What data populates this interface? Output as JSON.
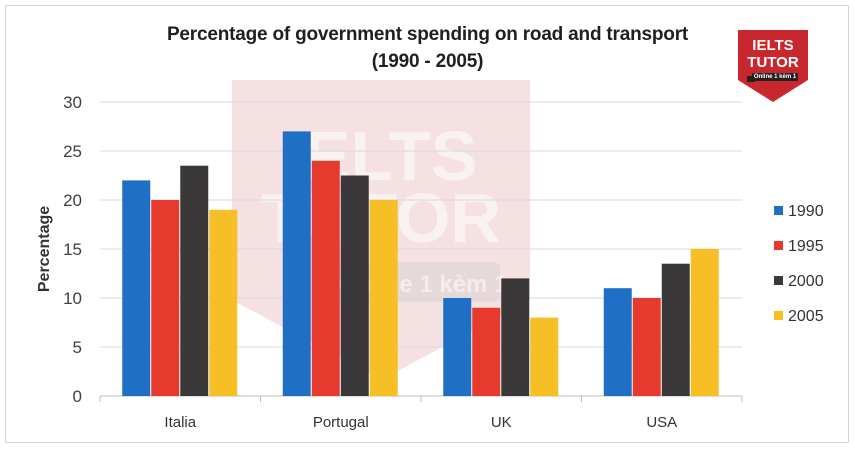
{
  "chart_data": {
    "type": "bar",
    "title": "Percentage of government spending on road and transport",
    "subtitle": "(1990 - 2005)",
    "xlabel": "",
    "ylabel": "Percentage",
    "ylim": [
      0,
      30
    ],
    "yticks": [
      0,
      5,
      10,
      15,
      20,
      25,
      30
    ],
    "grid": true,
    "legend_position": "right",
    "categories": [
      "Italia",
      "Portugal",
      "UK",
      "USA"
    ],
    "series": [
      {
        "name": "1990",
        "color": "#1f6fc5",
        "values": [
          22,
          27,
          10,
          11
        ]
      },
      {
        "name": "1995",
        "color": "#e63a2e",
        "values": [
          20,
          24,
          9,
          10
        ]
      },
      {
        "name": "2000",
        "color": "#3a3838",
        "values": [
          23.5,
          22.5,
          12,
          13.5
        ]
      },
      {
        "name": "2005",
        "color": "#f6bf26",
        "values": [
          19,
          20,
          8,
          15
        ]
      }
    ]
  },
  "watermark": {
    "line1": "IELTS",
    "line2": "TUTOR",
    "line3": "Online",
    "line4": "1 kèm 1"
  },
  "logo": {
    "line1": "IELTS",
    "line2": "TUTOR",
    "line3": "Online 1 kèm 1",
    "color": "#c8272d"
  }
}
